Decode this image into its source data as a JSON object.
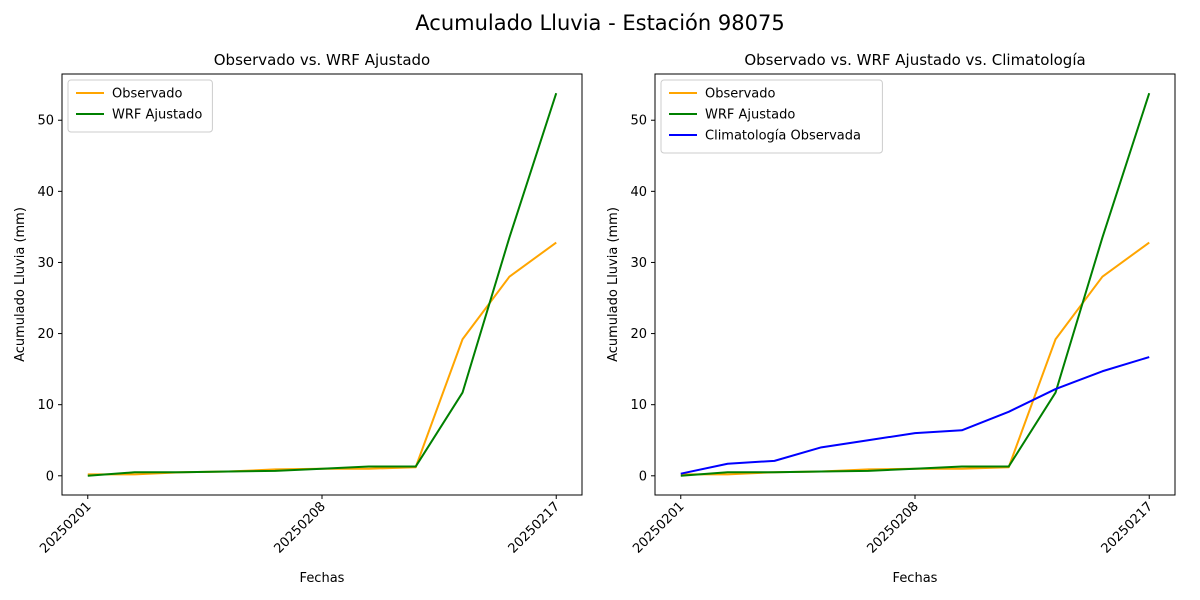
{
  "figure": {
    "title": "Acumulado Lluvia - Estación 98075"
  },
  "chart_data": [
    {
      "type": "line",
      "title": "Observado vs. WRF Ajustado",
      "xlabel": "Fechas",
      "ylabel": "Acumulado Lluvia (mm)",
      "xticks": [
        "20250201",
        "20250208",
        "20250217"
      ],
      "xtick_positions": [
        0,
        5,
        10
      ],
      "yticks": [
        0,
        10,
        20,
        30,
        40,
        50
      ],
      "ylim": [
        -2.7,
        56.5
      ],
      "xlim": [
        -0.55,
        10.55
      ],
      "grid": false,
      "legend": "top-left",
      "x": [
        0,
        1,
        2,
        3,
        4,
        5,
        6,
        7,
        8,
        9,
        10
      ],
      "series": [
        {
          "name": "Observado",
          "color": "#ffa500",
          "values": [
            0.2,
            0.2,
            0.5,
            0.6,
            0.9,
            1.0,
            1.0,
            1.2,
            19.2,
            28.0,
            32.8
          ]
        },
        {
          "name": "WRF Ajustado",
          "color": "#008000",
          "values": [
            0.0,
            0.5,
            0.5,
            0.6,
            0.7,
            1.0,
            1.3,
            1.3,
            11.7,
            33.5,
            53.8
          ]
        }
      ]
    },
    {
      "type": "line",
      "title": "Observado vs. WRF Ajustado vs. Climatología",
      "xlabel": "Fechas",
      "ylabel": "Acumulado Lluvia (mm)",
      "xticks": [
        "20250201",
        "20250208",
        "20250217"
      ],
      "xtick_positions": [
        0,
        5,
        10
      ],
      "yticks": [
        0,
        10,
        20,
        30,
        40,
        50
      ],
      "ylim": [
        -2.7,
        56.5
      ],
      "xlim": [
        -0.55,
        10.55
      ],
      "grid": false,
      "legend": "top-left",
      "x": [
        0,
        1,
        2,
        3,
        4,
        5,
        6,
        7,
        8,
        9,
        10
      ],
      "series": [
        {
          "name": "Observado",
          "color": "#ffa500",
          "values": [
            0.2,
            0.2,
            0.5,
            0.6,
            0.9,
            1.0,
            1.0,
            1.2,
            19.2,
            28.0,
            32.8
          ]
        },
        {
          "name": "WRF Ajustado",
          "color": "#008000",
          "values": [
            0.0,
            0.5,
            0.5,
            0.6,
            0.7,
            1.0,
            1.3,
            1.3,
            11.7,
            33.5,
            53.8
          ]
        },
        {
          "name": "Climatología Observada",
          "color": "#0000ff",
          "values": [
            0.3,
            1.7,
            2.1,
            4.0,
            5.0,
            6.0,
            6.4,
            9.0,
            12.2,
            14.7,
            16.7
          ]
        }
      ]
    }
  ]
}
